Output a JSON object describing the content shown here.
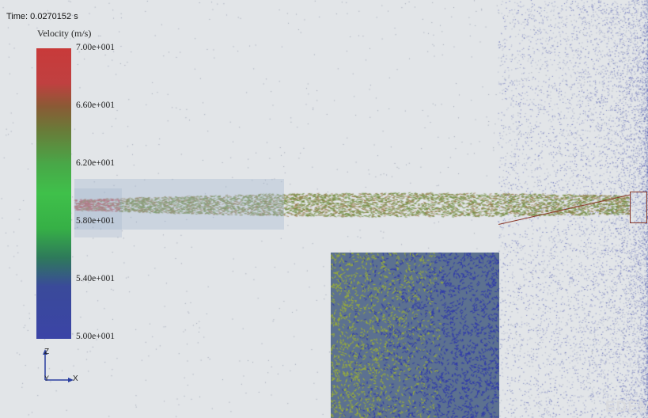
{
  "viewer": {
    "time_label": "Time: 0.0270152 s",
    "logo_text": "EDEM"
  },
  "legend": {
    "title": "Velocity (m/s)",
    "ticks": [
      "7.00e+001",
      "6.60e+001",
      "6.20e+001",
      "5.80e+001",
      "5.40e+001",
      "5.00e+001"
    ]
  },
  "axes": {
    "z_label": "Z",
    "y_label": "Y",
    "x_label": "X"
  },
  "colors": {
    "background": "#e2e5e8",
    "high_velocity": "#c83a3a",
    "mid_velocity": "#3fc04a",
    "low_velocity": "#3b44a6",
    "inset_background": "#5c7190",
    "zoom_outline": "#8a3a2a"
  }
}
